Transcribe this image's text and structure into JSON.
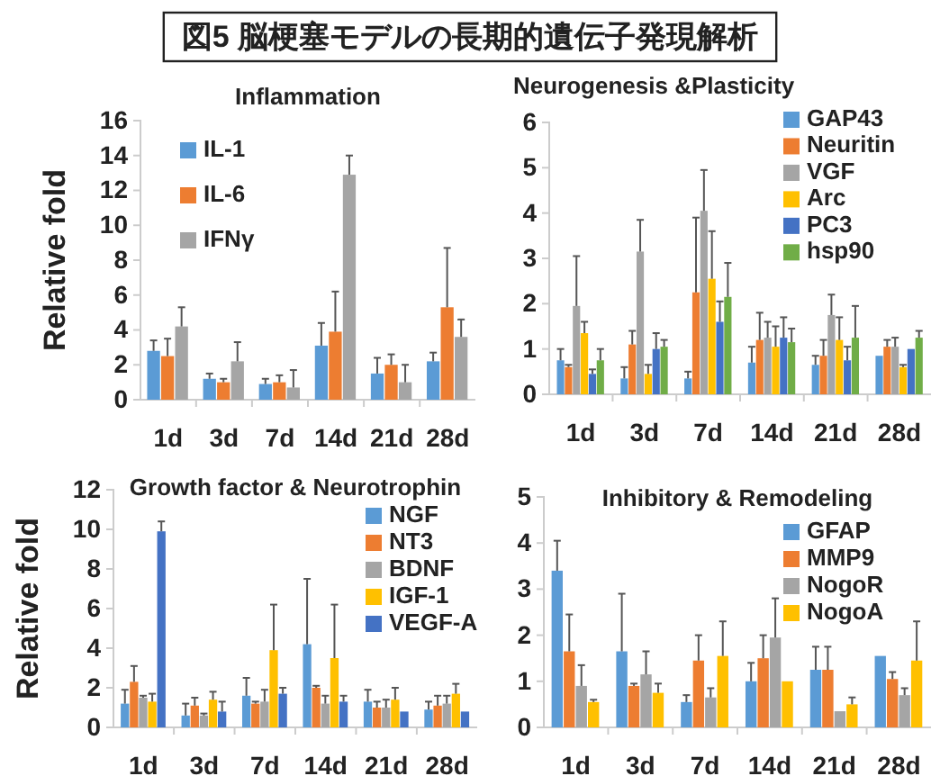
{
  "chart_data": [
    {
      "type": "other",
      "title": "図5 脳梗塞モデルの長期的遺伝子発現解析"
    },
    {
      "type": "bar",
      "title": "Inflammation",
      "ylabel": "Relative fold",
      "categories": [
        "1d",
        "3d",
        "7d",
        "14d",
        "21d",
        "28d"
      ],
      "ylim": [
        0,
        16
      ],
      "yticks": [
        0,
        2,
        4,
        6,
        8,
        10,
        12,
        14,
        16
      ],
      "legend": "top left",
      "series": [
        {
          "name": "IL-1",
          "color": "#5b9bd5",
          "values": [
            2.8,
            1.2,
            0.9,
            3.1,
            1.5,
            2.2
          ],
          "errors": [
            [
              2.8,
              3.4
            ],
            [
              1.2,
              1.5
            ],
            [
              0.9,
              1.2
            ],
            [
              3.1,
              4.4
            ],
            [
              1.5,
              2.4
            ],
            [
              2.2,
              2.7
            ]
          ]
        },
        {
          "name": "IL-6",
          "color": "#ed7d31",
          "values": [
            2.5,
            1.0,
            1.0,
            3.9,
            2.0,
            5.3
          ],
          "errors": [
            [
              2.5,
              3.5
            ],
            [
              1.0,
              1.2
            ],
            [
              1.0,
              1.4
            ],
            [
              3.9,
              6.2
            ],
            [
              2.0,
              2.6
            ],
            [
              5.3,
              8.7
            ]
          ]
        },
        {
          "name": "IFNγ",
          "color": "#a5a5a5",
          "values": [
            4.2,
            2.2,
            0.7,
            12.9,
            1.0,
            3.6
          ],
          "errors": [
            [
              4.2,
              5.3
            ],
            [
              2.2,
              3.3
            ],
            [
              0.7,
              1.7
            ],
            [
              12.9,
              14.0
            ],
            [
              1.0,
              2.0
            ],
            [
              3.6,
              4.6
            ]
          ]
        }
      ]
    },
    {
      "type": "bar",
      "title": "Neurogenesis &Plasticity",
      "categories": [
        "1d",
        "3d",
        "7d",
        "14d",
        "21d",
        "28d"
      ],
      "ylim": [
        0,
        6
      ],
      "yticks": [
        0,
        1,
        2,
        3,
        4,
        5,
        6
      ],
      "legend": "top right",
      "series": [
        {
          "name": "GAP43",
          "color": "#5b9bd5",
          "values": [
            0.75,
            0.35,
            0.35,
            0.7,
            0.65,
            0.85
          ],
          "errors": [
            [
              0.75,
              1.0
            ],
            [
              0.35,
              0.6
            ],
            [
              0.35,
              0.5
            ],
            [
              0.7,
              1.05
            ],
            [
              0.65,
              0.85
            ],
            null
          ]
        },
        {
          "name": "Neuritin",
          "color": "#ed7d31",
          "values": [
            0.6,
            1.1,
            2.25,
            1.2,
            0.85,
            1.05
          ],
          "errors": [
            [
              0.6,
              0.65
            ],
            [
              1.1,
              1.4
            ],
            [
              2.25,
              3.9
            ],
            [
              1.2,
              1.8
            ],
            [
              0.85,
              1.2
            ],
            [
              1.05,
              1.2
            ]
          ]
        },
        {
          "name": "VGF",
          "color": "#a5a5a5",
          "values": [
            1.95,
            3.15,
            4.05,
            1.25,
            1.75,
            1.05
          ],
          "errors": [
            [
              1.95,
              3.05
            ],
            [
              3.15,
              3.85
            ],
            [
              4.05,
              4.95
            ],
            [
              1.25,
              1.6
            ],
            [
              1.75,
              2.2
            ],
            [
              1.05,
              1.25
            ]
          ]
        },
        {
          "name": "Arc",
          "color": "#ffc000",
          "values": [
            1.35,
            0.45,
            2.55,
            1.05,
            1.2,
            0.6
          ],
          "errors": [
            [
              1.35,
              1.6
            ],
            [
              0.45,
              0.65
            ],
            [
              2.55,
              3.6
            ],
            [
              1.05,
              1.5
            ],
            [
              1.2,
              1.7
            ],
            [
              0.6,
              0.65
            ]
          ]
        },
        {
          "name": "PC3",
          "color": "#4472c4",
          "values": [
            0.45,
            1.0,
            1.6,
            1.25,
            0.75,
            1.0
          ],
          "errors": [
            [
              0.45,
              0.55
            ],
            [
              1.0,
              1.35
            ],
            [
              1.6,
              2.05
            ],
            [
              1.25,
              1.7
            ],
            [
              0.75,
              1.05
            ],
            null
          ]
        },
        {
          "name": "hsp90",
          "color": "#70ad47",
          "values": [
            0.75,
            1.05,
            2.15,
            1.15,
            1.25,
            1.25
          ],
          "errors": [
            [
              0.75,
              1.0
            ],
            [
              1.05,
              1.2
            ],
            [
              2.15,
              2.9
            ],
            [
              1.15,
              1.45
            ],
            [
              1.25,
              1.95
            ],
            [
              1.25,
              1.4
            ]
          ]
        }
      ]
    },
    {
      "type": "bar",
      "title": "Growth factor & Neurotrophin",
      "ylabel": "Relative fold",
      "categories": [
        "1d",
        "3d",
        "7d",
        "14d",
        "21d",
        "28d"
      ],
      "ylim": [
        0,
        12
      ],
      "yticks": [
        0,
        2,
        4,
        6,
        8,
        10,
        12
      ],
      "legend": "top right",
      "series": [
        {
          "name": "NGF",
          "color": "#5b9bd5",
          "values": [
            1.2,
            0.6,
            1.6,
            4.2,
            1.3,
            0.9
          ],
          "errors": [
            [
              1.2,
              1.9
            ],
            [
              0.6,
              1.2
            ],
            [
              1.6,
              2.5
            ],
            [
              4.2,
              7.5
            ],
            [
              1.3,
              1.9
            ],
            [
              0.9,
              1.3
            ]
          ]
        },
        {
          "name": "NT3",
          "color": "#ed7d31",
          "values": [
            2.3,
            1.1,
            1.2,
            2.0,
            1.0,
            1.1
          ],
          "errors": [
            [
              2.3,
              3.1
            ],
            [
              1.1,
              1.5
            ],
            [
              1.2,
              1.3
            ],
            [
              2.0,
              2.1
            ],
            [
              1.0,
              1.3
            ],
            [
              1.1,
              1.6
            ]
          ]
        },
        {
          "name": "BDNF",
          "color": "#a5a5a5",
          "values": [
            1.5,
            0.6,
            1.3,
            1.2,
            1.0,
            1.2
          ],
          "errors": [
            [
              1.5,
              1.6
            ],
            [
              0.6,
              0.7
            ],
            [
              1.3,
              1.9
            ],
            [
              1.2,
              1.6
            ],
            [
              1.0,
              1.4
            ],
            [
              1.2,
              1.6
            ]
          ]
        },
        {
          "name": "IGF-1",
          "color": "#ffc000",
          "values": [
            1.3,
            1.4,
            3.9,
            3.5,
            1.4,
            1.7
          ],
          "errors": [
            [
              1.3,
              1.7
            ],
            [
              1.4,
              1.8
            ],
            [
              3.9,
              6.2
            ],
            [
              3.5,
              6.2
            ],
            [
              1.4,
              2.0
            ],
            [
              1.7,
              2.2
            ]
          ]
        },
        {
          "name": "VEGF-A",
          "color": "#4472c4",
          "values": [
            9.9,
            0.8,
            1.7,
            1.3,
            0.8,
            0.8
          ],
          "errors": [
            [
              9.9,
              10.4
            ],
            [
              0.8,
              1.3
            ],
            [
              1.7,
              2.0
            ],
            [
              1.3,
              1.6
            ],
            null,
            null
          ]
        }
      ]
    },
    {
      "type": "bar",
      "title": "Inhibitory & Remodeling",
      "categories": [
        "1d",
        "3d",
        "7d",
        "14d",
        "21d",
        "28d"
      ],
      "ylim": [
        0,
        5
      ],
      "yticks": [
        0,
        1,
        2,
        3,
        4,
        5
      ],
      "legend": "top right",
      "series": [
        {
          "name": "GFAP",
          "color": "#5b9bd5",
          "values": [
            3.4,
            1.65,
            0.55,
            1.0,
            1.25,
            1.55
          ],
          "errors": [
            [
              3.4,
              4.05
            ],
            [
              1.65,
              2.9
            ],
            [
              0.55,
              0.7
            ],
            [
              1.0,
              1.4
            ],
            [
              1.25,
              1.75
            ],
            null
          ]
        },
        {
          "name": "MMP9",
          "color": "#ed7d31",
          "values": [
            1.65,
            0.9,
            1.45,
            1.5,
            1.25,
            1.05
          ],
          "errors": [
            [
              1.65,
              2.45
            ],
            [
              0.9,
              0.95
            ],
            [
              1.45,
              2.0
            ],
            [
              1.5,
              2.0
            ],
            [
              1.25,
              1.75
            ],
            [
              1.05,
              1.2
            ]
          ]
        },
        {
          "name": "NogoR",
          "color": "#a5a5a5",
          "values": [
            0.9,
            1.15,
            0.65,
            1.95,
            0.35,
            0.7
          ],
          "errors": [
            [
              0.9,
              1.35
            ],
            [
              1.15,
              1.65
            ],
            [
              0.65,
              0.85
            ],
            [
              1.95,
              2.8
            ],
            null,
            [
              0.7,
              0.85
            ]
          ]
        },
        {
          "name": "NogoA",
          "color": "#ffc000",
          "values": [
            0.55,
            0.75,
            1.55,
            1.0,
            0.5,
            1.45
          ],
          "errors": [
            [
              0.55,
              0.6
            ],
            [
              0.75,
              0.95
            ],
            [
              1.55,
              2.3
            ],
            null,
            [
              0.5,
              0.65
            ],
            [
              1.45,
              2.3
            ]
          ]
        }
      ]
    }
  ]
}
